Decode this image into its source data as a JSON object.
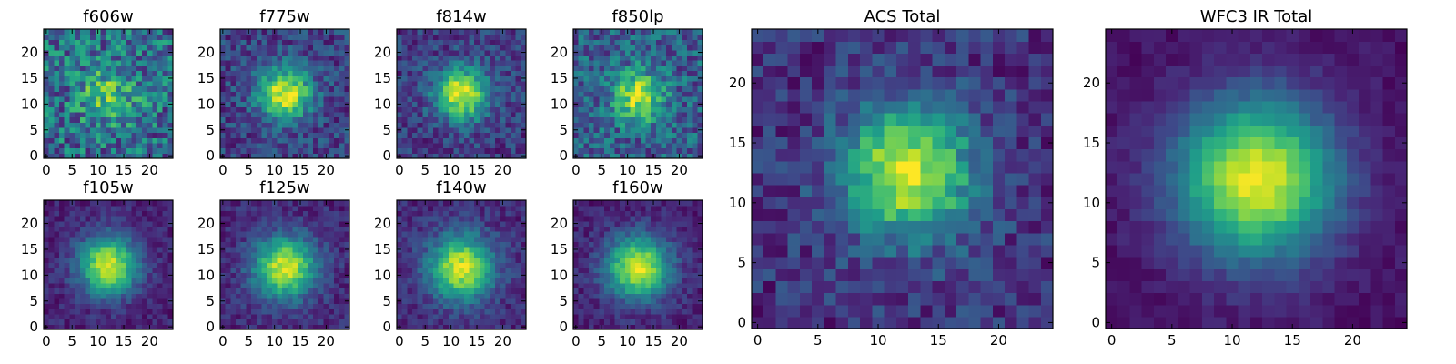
{
  "chart_data": [
    {
      "type": "heatmap",
      "title": "f606w",
      "xlim": [
        0,
        25
      ],
      "ylim": [
        0,
        25
      ],
      "x_ticks": [
        0,
        5,
        10,
        15,
        20
      ],
      "y_ticks": [
        0,
        5,
        10,
        15,
        20
      ],
      "peak": [
        12,
        12
      ],
      "sigma": 4,
      "noise": 0.55,
      "amp": 0.35,
      "base": 0.35,
      "seed": 11
    },
    {
      "type": "heatmap",
      "title": "f775w",
      "xlim": [
        0,
        25
      ],
      "ylim": [
        0,
        25
      ],
      "x_ticks": [
        0,
        5,
        10,
        15,
        20
      ],
      "y_ticks": [
        0,
        5,
        10,
        15,
        20
      ],
      "peak": [
        12,
        12
      ],
      "sigma": 3.6,
      "noise": 0.32,
      "amp": 0.75,
      "base": 0.2,
      "seed": 22
    },
    {
      "type": "heatmap",
      "title": "f814w",
      "xlim": [
        0,
        25
      ],
      "ylim": [
        0,
        25
      ],
      "x_ticks": [
        0,
        5,
        10,
        15,
        20
      ],
      "y_ticks": [
        0,
        5,
        10,
        15,
        20
      ],
      "peak": [
        12,
        12
      ],
      "sigma": 3.6,
      "noise": 0.3,
      "amp": 0.78,
      "base": 0.18,
      "seed": 33
    },
    {
      "type": "heatmap",
      "title": "f850lp",
      "xlim": [
        0,
        25
      ],
      "ylim": [
        0,
        25
      ],
      "x_ticks": [
        0,
        5,
        10,
        15,
        20
      ],
      "y_ticks": [
        0,
        5,
        10,
        15,
        20
      ],
      "peak": [
        12,
        11.5
      ],
      "sigma": 3.4,
      "noise": 0.42,
      "amp": 0.6,
      "base": 0.3,
      "seed": 44
    },
    {
      "type": "heatmap",
      "title": "f105w",
      "xlim": [
        0,
        25
      ],
      "ylim": [
        0,
        25
      ],
      "x_ticks": [
        0,
        5,
        10,
        15,
        20
      ],
      "y_ticks": [
        0,
        5,
        10,
        15,
        20
      ],
      "peak": [
        12,
        12
      ],
      "sigma": 4,
      "noise": 0.18,
      "amp": 0.85,
      "base": 0.1,
      "seed": 55
    },
    {
      "type": "heatmap",
      "title": "f125w",
      "xlim": [
        0,
        25
      ],
      "ylim": [
        0,
        25
      ],
      "x_ticks": [
        0,
        5,
        10,
        15,
        20
      ],
      "y_ticks": [
        0,
        5,
        10,
        15,
        20
      ],
      "peak": [
        12,
        11.5
      ],
      "sigma": 4.2,
      "noise": 0.2,
      "amp": 0.82,
      "base": 0.12,
      "seed": 66
    },
    {
      "type": "heatmap",
      "title": "f140w",
      "xlim": [
        0,
        25
      ],
      "ylim": [
        0,
        25
      ],
      "x_ticks": [
        0,
        5,
        10,
        15,
        20
      ],
      "y_ticks": [
        0,
        5,
        10,
        15,
        20
      ],
      "peak": [
        12,
        11.5
      ],
      "sigma": 4.4,
      "noise": 0.2,
      "amp": 0.82,
      "base": 0.12,
      "seed": 77
    },
    {
      "type": "heatmap",
      "title": "f160w",
      "xlim": [
        0,
        25
      ],
      "ylim": [
        0,
        25
      ],
      "x_ticks": [
        0,
        5,
        10,
        15,
        20
      ],
      "y_ticks": [
        0,
        5,
        10,
        15,
        20
      ],
      "peak": [
        12,
        11.5
      ],
      "sigma": 4.2,
      "noise": 0.18,
      "amp": 0.85,
      "base": 0.1,
      "seed": 88
    },
    {
      "type": "heatmap",
      "title": "ACS Total",
      "xlim": [
        0,
        25
      ],
      "ylim": [
        0,
        25
      ],
      "x_ticks": [
        0,
        5,
        10,
        15,
        20
      ],
      "y_ticks": [
        0,
        5,
        10,
        15,
        20
      ],
      "peak": [
        12.5,
        12.5
      ],
      "sigma": 3.8,
      "noise": 0.28,
      "amp": 0.8,
      "base": 0.15,
      "seed": 99
    },
    {
      "type": "heatmap",
      "title": "WFC3 IR Total",
      "xlim": [
        0,
        25
      ],
      "ylim": [
        0,
        25
      ],
      "x_ticks": [
        0,
        5,
        10,
        15,
        20
      ],
      "y_ticks": [
        0,
        5,
        10,
        15,
        20
      ],
      "peak": [
        12,
        12
      ],
      "sigma": 4.6,
      "noise": 0.1,
      "amp": 0.92,
      "base": 0.05,
      "seed": 111
    }
  ],
  "colormap": [
    "#440154",
    "#482878",
    "#3e4989",
    "#31688e",
    "#26828e",
    "#1f9e89",
    "#35b779",
    "#6ece58",
    "#b5de2b",
    "#fde725"
  ]
}
